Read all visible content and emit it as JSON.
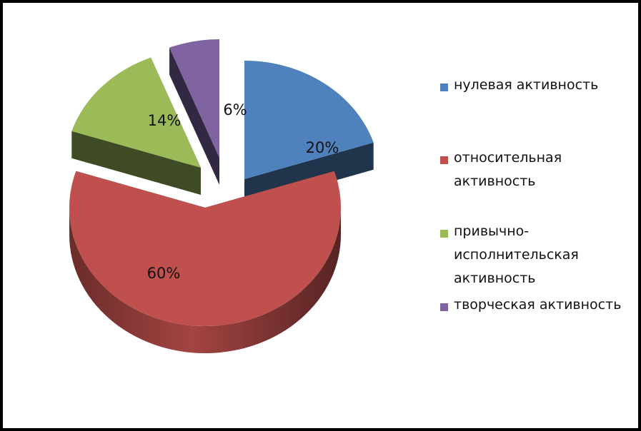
{
  "chart_data": {
    "type": "pie",
    "style": "3d-exploded",
    "categories": [
      "нулевая активность",
      "относительная активность",
      "привычно-исполнительская активность",
      "творческая активность"
    ],
    "values": [
      20,
      60,
      14,
      6
    ],
    "labels": [
      "20%",
      "60%",
      "14%",
      "6%"
    ],
    "colors": [
      "#4f81bd",
      "#c0504d",
      "#9bbb59",
      "#8064a2"
    ],
    "legend": {
      "placement": "right",
      "items": [
        {
          "lines": [
            "нулевая активность"
          ],
          "color": "#4f81bd"
        },
        {
          "lines": [
            "относительная",
            "активность"
          ],
          "color": "#c0504d"
        },
        {
          "lines": [
            "привычно-",
            "исполнительская",
            "активность"
          ],
          "color": "#9bbb59"
        },
        {
          "lines": [
            "творческая активность"
          ],
          "color": "#8064a2"
        }
      ]
    }
  }
}
